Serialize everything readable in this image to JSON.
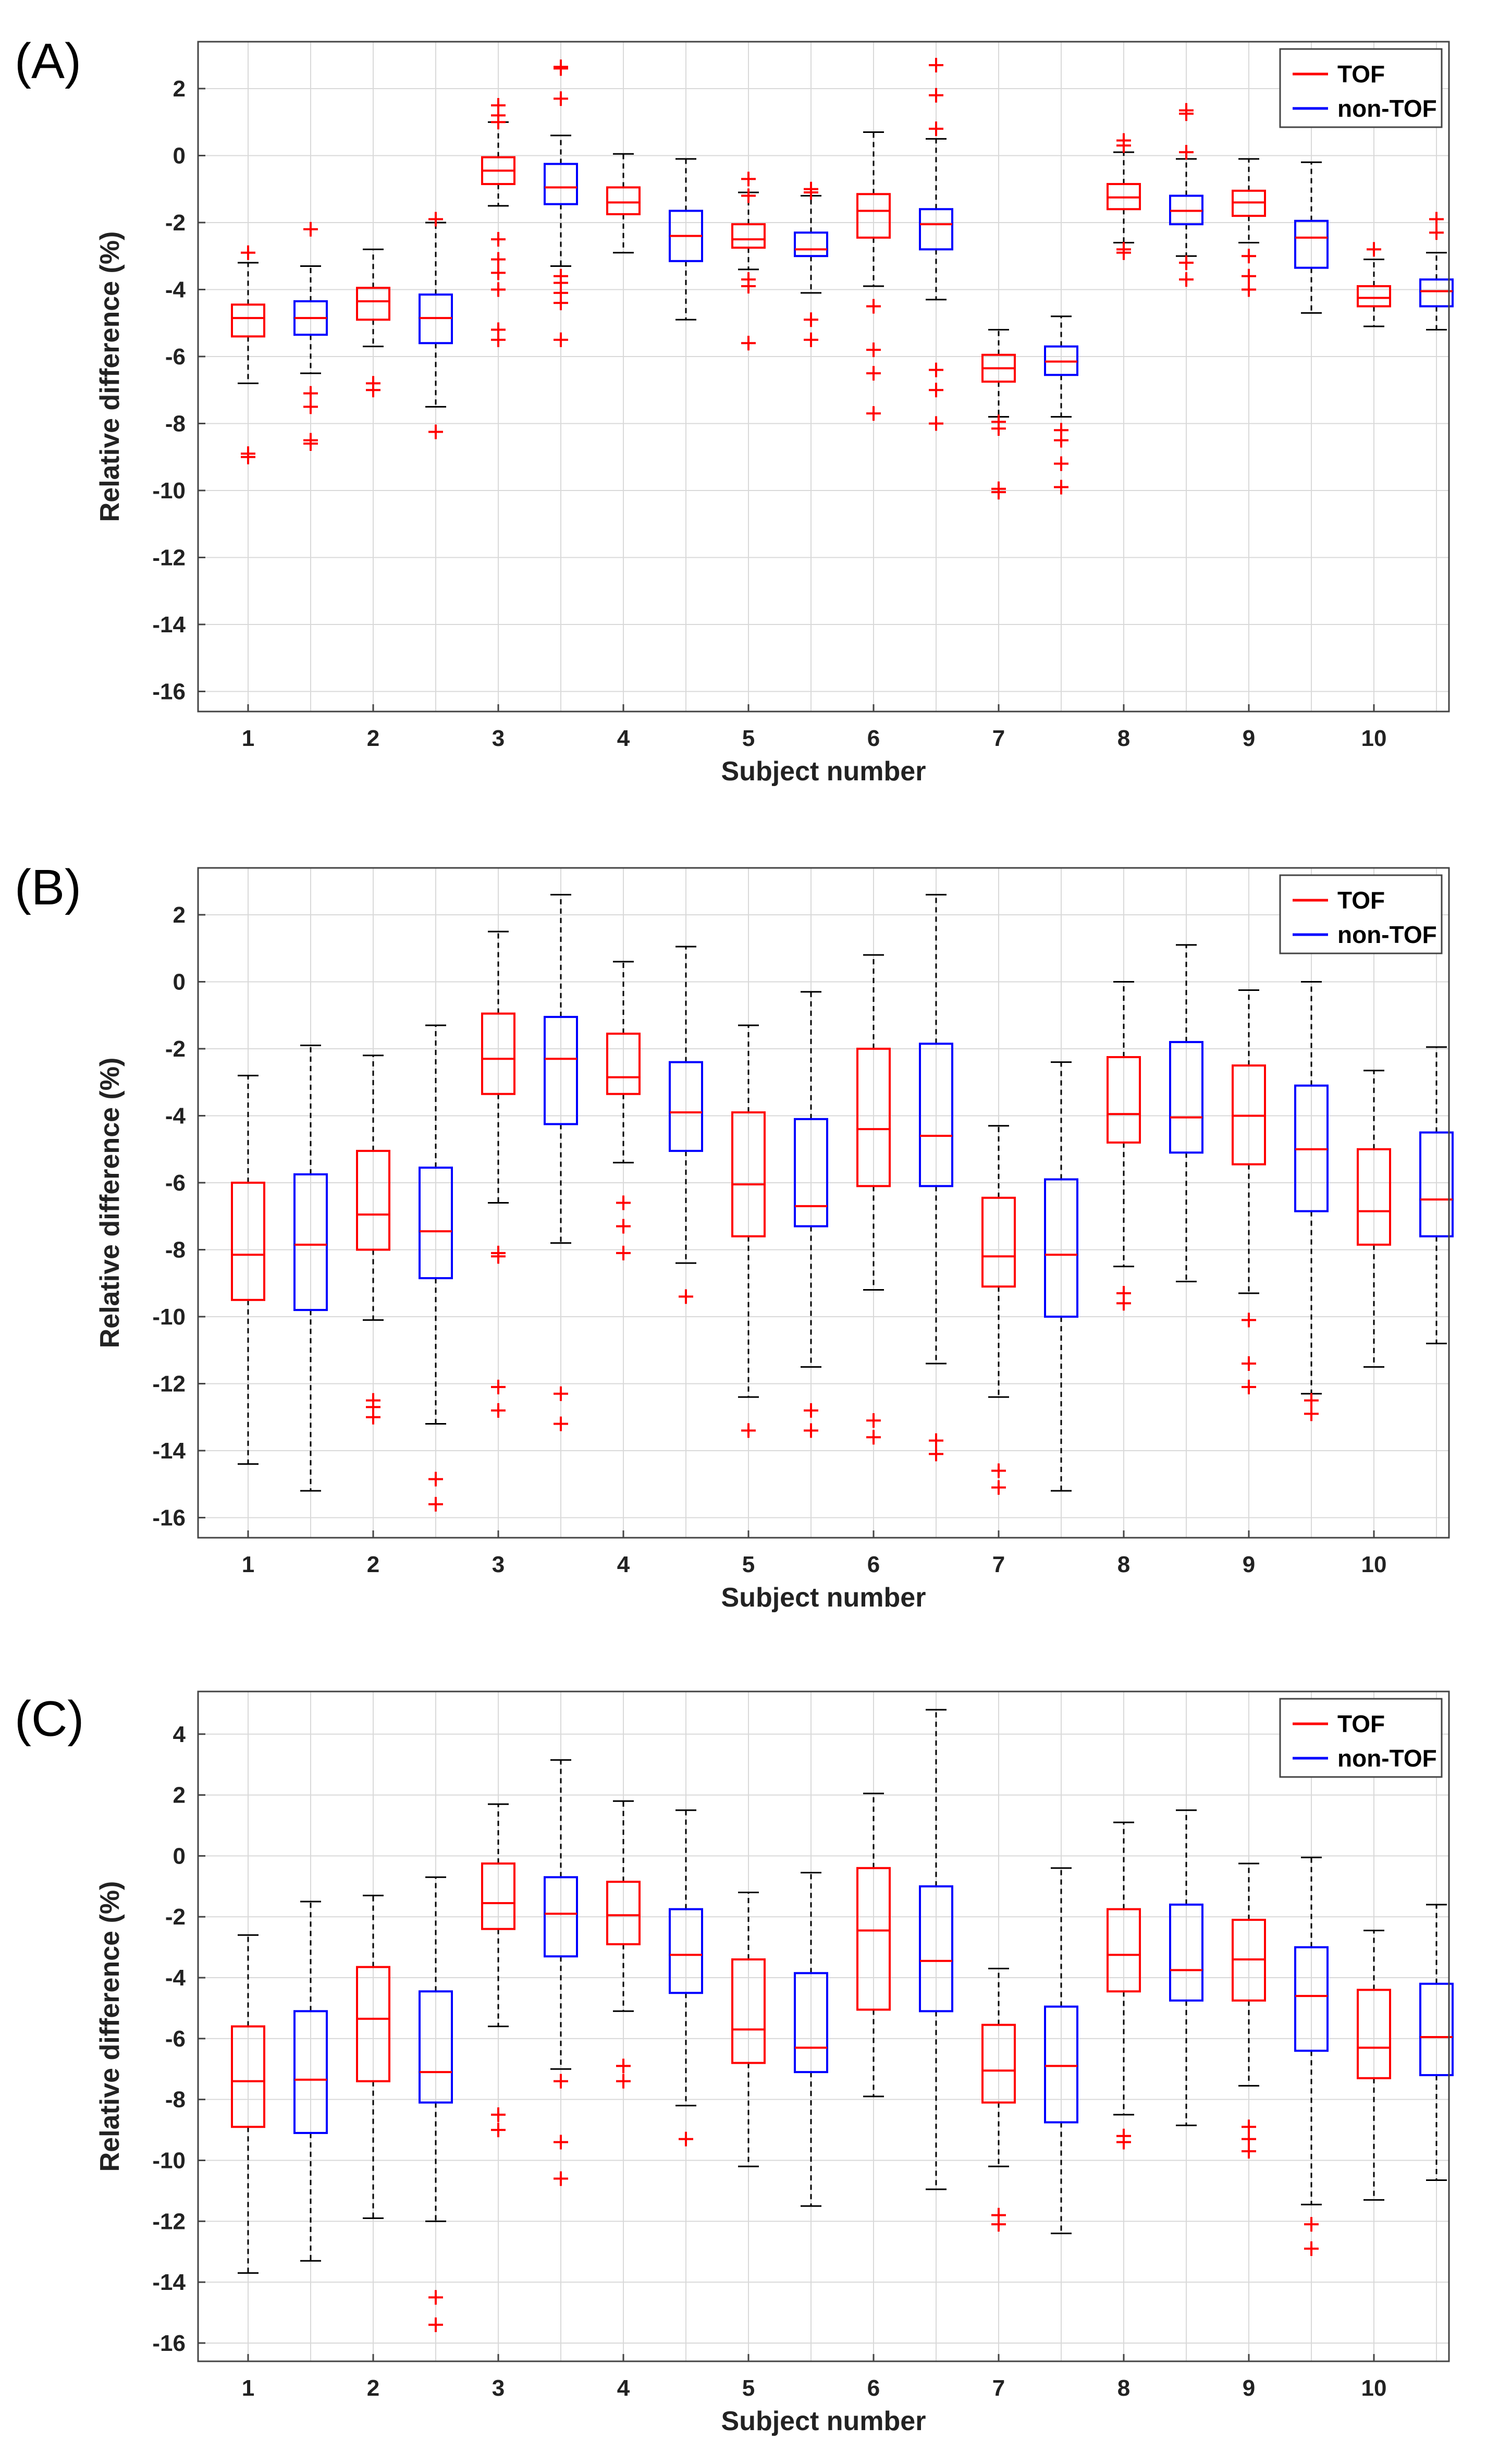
{
  "series_names": [
    "TOF",
    "non-TOF"
  ],
  "colors": {
    "TOF": "#ff0000",
    "non-TOF": "#0000ff",
    "whisker": "#000000",
    "grid": "#d9d9d9",
    "axis": "#444444"
  },
  "chart_data": [
    {
      "panel_label": "(A)",
      "type": "box",
      "title": "",
      "xlabel": "Subject number",
      "ylabel": "Relative difference (%)",
      "ylim": [
        -16.6,
        3.4
      ],
      "yticks": [
        -16,
        -14,
        -12,
        -10,
        -8,
        -6,
        -4,
        -2,
        0,
        2
      ],
      "xlim": [
        0.6,
        10.6
      ],
      "xticks": [
        1,
        2,
        3,
        4,
        5,
        6,
        7,
        8,
        9,
        10
      ],
      "legend": [
        "TOF",
        "non-TOF"
      ],
      "legend_loc": "top-right",
      "boxes": [
        {
          "subject": 1,
          "series": "TOF",
          "q1": -5.4,
          "median": -4.85,
          "q3": -4.45,
          "whisker_low": -6.8,
          "whisker_high": -3.2,
          "outliers": [
            -2.9,
            -8.9,
            -9.0
          ]
        },
        {
          "subject": 1,
          "series": "non-TOF",
          "q1": -5.35,
          "median": -4.85,
          "q3": -4.35,
          "whisker_low": -6.5,
          "whisker_high": -3.3,
          "outliers": [
            -2.2,
            -7.1,
            -7.5,
            -8.5,
            -8.6
          ]
        },
        {
          "subject": 2,
          "series": "TOF",
          "q1": -4.9,
          "median": -4.35,
          "q3": -3.95,
          "whisker_low": -5.7,
          "whisker_high": -2.8,
          "outliers": [
            -6.8,
            -7.0
          ]
        },
        {
          "subject": 2,
          "series": "non-TOF",
          "q1": -5.6,
          "median": -4.85,
          "q3": -4.15,
          "whisker_low": -7.5,
          "whisker_high": -2.0,
          "outliers": [
            -1.9,
            -8.25
          ]
        },
        {
          "subject": 3,
          "series": "TOF",
          "q1": -0.85,
          "median": -0.45,
          "q3": -0.05,
          "whisker_low": -1.5,
          "whisker_high": 1.0,
          "outliers": [
            1.5,
            1.2,
            1.0,
            -2.5,
            -3.1,
            -3.5,
            -4.0,
            -5.2,
            -5.5
          ]
        },
        {
          "subject": 3,
          "series": "non-TOF",
          "q1": -1.45,
          "median": -0.95,
          "q3": -0.25,
          "whisker_low": -3.3,
          "whisker_high": 0.6,
          "outliers": [
            2.6,
            2.65,
            1.7,
            -3.6,
            -3.8,
            -4.1,
            -4.4,
            -5.5
          ]
        },
        {
          "subject": 4,
          "series": "TOF",
          "q1": -1.75,
          "median": -1.4,
          "q3": -0.95,
          "whisker_low": -2.9,
          "whisker_high": 0.05,
          "outliers": []
        },
        {
          "subject": 4,
          "series": "non-TOF",
          "q1": -3.15,
          "median": -2.4,
          "q3": -1.65,
          "whisker_low": -4.9,
          "whisker_high": -0.1,
          "outliers": []
        },
        {
          "subject": 5,
          "series": "TOF",
          "q1": -2.75,
          "median": -2.5,
          "q3": -2.05,
          "whisker_low": -3.4,
          "whisker_high": -1.1,
          "outliers": [
            -0.7,
            -1.2,
            -3.7,
            -3.9,
            -5.6
          ]
        },
        {
          "subject": 5,
          "series": "non-TOF",
          "q1": -3.0,
          "median": -2.8,
          "q3": -2.3,
          "whisker_low": -4.1,
          "whisker_high": -1.2,
          "outliers": [
            -1.0,
            -1.1,
            -4.9,
            -5.5
          ]
        },
        {
          "subject": 6,
          "series": "TOF",
          "q1": -2.45,
          "median": -1.65,
          "q3": -1.15,
          "whisker_low": -3.9,
          "whisker_high": 0.7,
          "outliers": [
            -4.5,
            -5.8,
            -6.5,
            -7.7
          ]
        },
        {
          "subject": 6,
          "series": "non-TOF",
          "q1": -2.8,
          "median": -2.05,
          "q3": -1.6,
          "whisker_low": -4.3,
          "whisker_high": 0.5,
          "outliers": [
            2.7,
            1.8,
            0.8,
            -6.4,
            -7.0,
            -8.0
          ]
        },
        {
          "subject": 7,
          "series": "TOF",
          "q1": -6.75,
          "median": -6.35,
          "q3": -5.95,
          "whisker_low": -7.8,
          "whisker_high": -5.2,
          "outliers": [
            -7.95,
            -8.15,
            -9.95,
            -10.05
          ]
        },
        {
          "subject": 7,
          "series": "non-TOF",
          "q1": -6.55,
          "median": -6.15,
          "q3": -5.7,
          "whisker_low": -7.8,
          "whisker_high": -4.8,
          "outliers": [
            -8.2,
            -8.5,
            -9.2,
            -9.9
          ]
        },
        {
          "subject": 8,
          "series": "TOF",
          "q1": -1.6,
          "median": -1.25,
          "q3": -0.85,
          "whisker_low": -2.6,
          "whisker_high": 0.1,
          "outliers": [
            0.3,
            0.45,
            -2.8,
            -2.9
          ]
        },
        {
          "subject": 8,
          "series": "non-TOF",
          "q1": -2.05,
          "median": -1.65,
          "q3": -1.2,
          "whisker_low": -3.0,
          "whisker_high": -0.1,
          "outliers": [
            1.25,
            1.35,
            0.1,
            -3.2,
            -3.7
          ]
        },
        {
          "subject": 9,
          "series": "TOF",
          "q1": -1.8,
          "median": -1.4,
          "q3": -1.05,
          "whisker_low": -2.6,
          "whisker_high": -0.1,
          "outliers": [
            -3.0,
            -3.6,
            -4.0
          ]
        },
        {
          "subject": 9,
          "series": "non-TOF",
          "q1": -3.35,
          "median": -2.45,
          "q3": -1.95,
          "whisker_low": -4.7,
          "whisker_high": -0.2,
          "outliers": []
        },
        {
          "subject": 10,
          "series": "TOF",
          "q1": -4.5,
          "median": -4.25,
          "q3": -3.9,
          "whisker_low": -5.1,
          "whisker_high": -3.1,
          "outliers": [
            -2.8
          ]
        },
        {
          "subject": 10,
          "series": "non-TOF",
          "q1": -4.5,
          "median": -4.05,
          "q3": -3.7,
          "whisker_low": -5.2,
          "whisker_high": -2.9,
          "outliers": [
            -1.9,
            -2.3
          ]
        }
      ]
    },
    {
      "panel_label": "(B)",
      "type": "box",
      "title": "",
      "xlabel": "Subject number",
      "ylabel": "Relative difference (%)",
      "ylim": [
        -16.6,
        3.4
      ],
      "yticks": [
        -16,
        -14,
        -12,
        -10,
        -8,
        -6,
        -4,
        -2,
        0,
        2
      ],
      "xlim": [
        0.6,
        10.6
      ],
      "xticks": [
        1,
        2,
        3,
        4,
        5,
        6,
        7,
        8,
        9,
        10
      ],
      "legend": [
        "TOF",
        "non-TOF"
      ],
      "legend_loc": "top-right",
      "boxes": [
        {
          "subject": 1,
          "series": "TOF",
          "q1": -9.5,
          "median": -8.15,
          "q3": -6.0,
          "whisker_low": -14.4,
          "whisker_high": -2.8,
          "outliers": []
        },
        {
          "subject": 1,
          "series": "non-TOF",
          "q1": -9.8,
          "median": -7.85,
          "q3": -5.75,
          "whisker_low": -15.2,
          "whisker_high": -1.9,
          "outliers": []
        },
        {
          "subject": 2,
          "series": "TOF",
          "q1": -8.0,
          "median": -6.95,
          "q3": -5.05,
          "whisker_low": -10.1,
          "whisker_high": -2.2,
          "outliers": [
            -12.5,
            -12.7,
            -13.0
          ]
        },
        {
          "subject": 2,
          "series": "non-TOF",
          "q1": -8.85,
          "median": -7.45,
          "q3": -5.55,
          "whisker_low": -13.2,
          "whisker_high": -1.3,
          "outliers": [
            -14.85,
            -15.6
          ]
        },
        {
          "subject": 3,
          "series": "TOF",
          "q1": -3.35,
          "median": -2.3,
          "q3": -0.95,
          "whisker_low": -6.6,
          "whisker_high": 1.5,
          "outliers": [
            -8.1,
            -8.2,
            -12.1,
            -12.8
          ]
        },
        {
          "subject": 3,
          "series": "non-TOF",
          "q1": -4.25,
          "median": -2.3,
          "q3": -1.05,
          "whisker_low": -7.8,
          "whisker_high": 2.6,
          "outliers": [
            -12.3,
            -13.2
          ]
        },
        {
          "subject": 4,
          "series": "TOF",
          "q1": -3.35,
          "median": -2.85,
          "q3": -1.55,
          "whisker_low": -5.4,
          "whisker_high": 0.6,
          "outliers": [
            -6.6,
            -7.3,
            -8.1
          ]
        },
        {
          "subject": 4,
          "series": "non-TOF",
          "q1": -5.05,
          "median": -3.9,
          "q3": -2.4,
          "whisker_low": -8.4,
          "whisker_high": 1.05,
          "outliers": [
            -9.4
          ]
        },
        {
          "subject": 5,
          "series": "TOF",
          "q1": -7.6,
          "median": -6.05,
          "q3": -3.9,
          "whisker_low": -12.4,
          "whisker_high": -1.3,
          "outliers": [
            -13.4
          ]
        },
        {
          "subject": 5,
          "series": "non-TOF",
          "q1": -7.3,
          "median": -6.7,
          "q3": -4.1,
          "whisker_low": -11.5,
          "whisker_high": -0.3,
          "outliers": [
            -12.8,
            -13.4
          ]
        },
        {
          "subject": 6,
          "series": "TOF",
          "q1": -6.1,
          "median": -4.4,
          "q3": -2.0,
          "whisker_low": -9.2,
          "whisker_high": 0.8,
          "outliers": [
            -13.1,
            -13.6
          ]
        },
        {
          "subject": 6,
          "series": "non-TOF",
          "q1": -6.1,
          "median": -4.6,
          "q3": -1.85,
          "whisker_low": -11.4,
          "whisker_high": 2.6,
          "outliers": [
            -13.7,
            -14.1
          ]
        },
        {
          "subject": 7,
          "series": "TOF",
          "q1": -9.1,
          "median": -8.2,
          "q3": -6.45,
          "whisker_low": -12.4,
          "whisker_high": -4.3,
          "outliers": [
            -14.6,
            -15.1
          ]
        },
        {
          "subject": 7,
          "series": "non-TOF",
          "q1": -10.0,
          "median": -8.15,
          "q3": -5.9,
          "whisker_low": -15.2,
          "whisker_high": -2.4,
          "outliers": []
        },
        {
          "subject": 8,
          "series": "TOF",
          "q1": -4.8,
          "median": -3.95,
          "q3": -2.25,
          "whisker_low": -8.5,
          "whisker_high": 0.0,
          "outliers": [
            -9.3,
            -9.6
          ]
        },
        {
          "subject": 8,
          "series": "non-TOF",
          "q1": -5.1,
          "median": -4.05,
          "q3": -1.8,
          "whisker_low": -8.95,
          "whisker_high": 1.1,
          "outliers": []
        },
        {
          "subject": 9,
          "series": "TOF",
          "q1": -5.45,
          "median": -4.0,
          "q3": -2.5,
          "whisker_low": -9.3,
          "whisker_high": -0.25,
          "outliers": [
            -10.1,
            -11.4,
            -12.1
          ]
        },
        {
          "subject": 9,
          "series": "non-TOF",
          "q1": -6.85,
          "median": -5.0,
          "q3": -3.1,
          "whisker_low": -12.3,
          "whisker_high": 0.0,
          "outliers": [
            -12.5,
            -12.9
          ]
        },
        {
          "subject": 10,
          "series": "TOF",
          "q1": -7.85,
          "median": -6.85,
          "q3": -5.0,
          "whisker_low": -11.5,
          "whisker_high": -2.65,
          "outliers": []
        },
        {
          "subject": 10,
          "series": "non-TOF",
          "q1": -7.6,
          "median": -6.5,
          "q3": -4.5,
          "whisker_low": -10.8,
          "whisker_high": -1.95,
          "outliers": []
        }
      ]
    },
    {
      "panel_label": "(C)",
      "type": "box",
      "title": "",
      "xlabel": "Subject number",
      "ylabel": "Relative difference (%)",
      "ylim": [
        -16.6,
        5.4
      ],
      "yticks": [
        -16,
        -14,
        -12,
        -10,
        -8,
        -6,
        -4,
        -2,
        0,
        2,
        4
      ],
      "xlim": [
        0.6,
        10.6
      ],
      "xticks": [
        1,
        2,
        3,
        4,
        5,
        6,
        7,
        8,
        9,
        10
      ],
      "legend": [
        "TOF",
        "non-TOF"
      ],
      "legend_loc": "top-right",
      "boxes": [
        {
          "subject": 1,
          "series": "TOF",
          "q1": -8.9,
          "median": -7.4,
          "q3": -5.6,
          "whisker_low": -13.7,
          "whisker_high": -2.6,
          "outliers": []
        },
        {
          "subject": 1,
          "series": "non-TOF",
          "q1": -9.1,
          "median": -7.35,
          "q3": -5.1,
          "whisker_low": -13.3,
          "whisker_high": -1.5,
          "outliers": []
        },
        {
          "subject": 2,
          "series": "TOF",
          "q1": -7.4,
          "median": -5.35,
          "q3": -3.65,
          "whisker_low": -11.9,
          "whisker_high": -1.3,
          "outliers": []
        },
        {
          "subject": 2,
          "series": "non-TOF",
          "q1": -8.1,
          "median": -7.1,
          "q3": -4.45,
          "whisker_low": -12.0,
          "whisker_high": -0.7,
          "outliers": [
            -14.5,
            -15.4
          ]
        },
        {
          "subject": 3,
          "series": "TOF",
          "q1": -2.4,
          "median": -1.55,
          "q3": -0.25,
          "whisker_low": -5.6,
          "whisker_high": 1.7,
          "outliers": [
            -8.5,
            -9.0
          ]
        },
        {
          "subject": 3,
          "series": "non-TOF",
          "q1": -3.3,
          "median": -1.9,
          "q3": -0.7,
          "whisker_low": -7.0,
          "whisker_high": 3.15,
          "outliers": [
            -7.4,
            -9.4,
            -10.6
          ]
        },
        {
          "subject": 4,
          "series": "TOF",
          "q1": -2.9,
          "median": -1.95,
          "q3": -0.85,
          "whisker_low": -5.1,
          "whisker_high": 1.8,
          "outliers": [
            -6.9,
            -7.4
          ]
        },
        {
          "subject": 4,
          "series": "non-TOF",
          "q1": -4.5,
          "median": -3.25,
          "q3": -1.75,
          "whisker_low": -8.2,
          "whisker_high": 1.5,
          "outliers": [
            -9.3
          ]
        },
        {
          "subject": 5,
          "series": "TOF",
          "q1": -6.8,
          "median": -5.7,
          "q3": -3.4,
          "whisker_low": -10.2,
          "whisker_high": -1.2,
          "outliers": []
        },
        {
          "subject": 5,
          "series": "non-TOF",
          "q1": -7.1,
          "median": -6.3,
          "q3": -3.85,
          "whisker_low": -11.5,
          "whisker_high": -0.55,
          "outliers": []
        },
        {
          "subject": 6,
          "series": "TOF",
          "q1": -5.05,
          "median": -2.45,
          "q3": -0.4,
          "whisker_low": -7.9,
          "whisker_high": 2.05,
          "outliers": []
        },
        {
          "subject": 6,
          "series": "non-TOF",
          "q1": -5.1,
          "median": -3.45,
          "q3": -1.0,
          "whisker_low": -10.95,
          "whisker_high": 4.8,
          "outliers": []
        },
        {
          "subject": 7,
          "series": "TOF",
          "q1": -8.1,
          "median": -7.05,
          "q3": -5.55,
          "whisker_low": -10.2,
          "whisker_high": -3.7,
          "outliers": [
            -11.8,
            -12.1
          ]
        },
        {
          "subject": 7,
          "series": "non-TOF",
          "q1": -8.75,
          "median": -6.9,
          "q3": -4.95,
          "whisker_low": -12.4,
          "whisker_high": -0.4,
          "outliers": []
        },
        {
          "subject": 8,
          "series": "TOF",
          "q1": -4.45,
          "median": -3.25,
          "q3": -1.75,
          "whisker_low": -8.5,
          "whisker_high": 1.1,
          "outliers": [
            -9.2,
            -9.4
          ]
        },
        {
          "subject": 8,
          "series": "non-TOF",
          "q1": -4.75,
          "median": -3.75,
          "q3": -1.6,
          "whisker_low": -8.85,
          "whisker_high": 1.5,
          "outliers": []
        },
        {
          "subject": 9,
          "series": "TOF",
          "q1": -4.75,
          "median": -3.4,
          "q3": -2.1,
          "whisker_low": -7.55,
          "whisker_high": -0.25,
          "outliers": [
            -8.9,
            -9.3,
            -9.7
          ]
        },
        {
          "subject": 9,
          "series": "non-TOF",
          "q1": -6.4,
          "median": -4.6,
          "q3": -3.0,
          "whisker_low": -11.45,
          "whisker_high": -0.05,
          "outliers": [
            -12.1,
            -12.9
          ]
        },
        {
          "subject": 10,
          "series": "TOF",
          "q1": -7.3,
          "median": -6.3,
          "q3": -4.4,
          "whisker_low": -11.3,
          "whisker_high": -2.45,
          "outliers": []
        },
        {
          "subject": 10,
          "series": "non-TOF",
          "q1": -7.2,
          "median": -5.95,
          "q3": -4.2,
          "whisker_low": -10.65,
          "whisker_high": -1.6,
          "outliers": []
        }
      ]
    }
  ]
}
